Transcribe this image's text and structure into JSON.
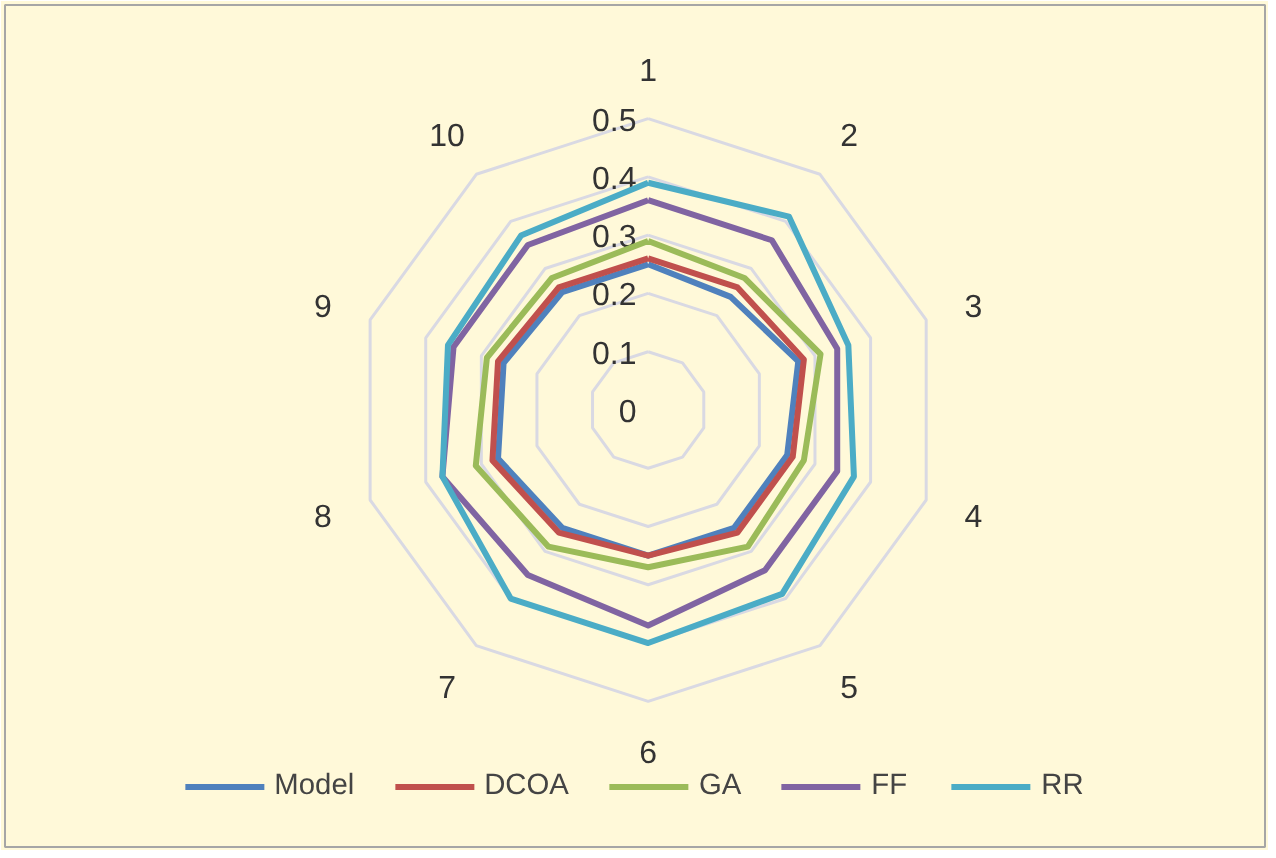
{
  "chart_data": {
    "type": "radar",
    "categories": [
      "1",
      "2",
      "3",
      "4",
      "5",
      "6",
      "7",
      "8",
      "9",
      "10"
    ],
    "ylim": [
      0,
      0.5
    ],
    "yticks": [
      0,
      0.1,
      0.2,
      0.3,
      0.4,
      0.5
    ],
    "legend": "bottom",
    "grid": true,
    "series": [
      {
        "name": "Model",
        "color": "#4f81bd",
        "values": [
          0.25,
          0.24,
          0.27,
          0.25,
          0.25,
          0.25,
          0.25,
          0.27,
          0.26,
          0.25
        ]
      },
      {
        "name": "DCOA",
        "color": "#c0504d",
        "values": [
          0.26,
          0.26,
          0.28,
          0.26,
          0.26,
          0.25,
          0.26,
          0.28,
          0.27,
          0.26
        ]
      },
      {
        "name": "GA",
        "color": "#9bbb59",
        "values": [
          0.29,
          0.28,
          0.31,
          0.28,
          0.29,
          0.27,
          0.29,
          0.31,
          0.29,
          0.28
        ]
      },
      {
        "name": "FF",
        "color": "#8064a2",
        "values": [
          0.36,
          0.36,
          0.34,
          0.34,
          0.34,
          0.37,
          0.35,
          0.37,
          0.35,
          0.35
        ]
      },
      {
        "name": "RR",
        "color": "#4bacc6",
        "values": [
          0.39,
          0.41,
          0.36,
          0.37,
          0.39,
          0.4,
          0.4,
          0.37,
          0.36,
          0.37
        ]
      }
    ]
  }
}
